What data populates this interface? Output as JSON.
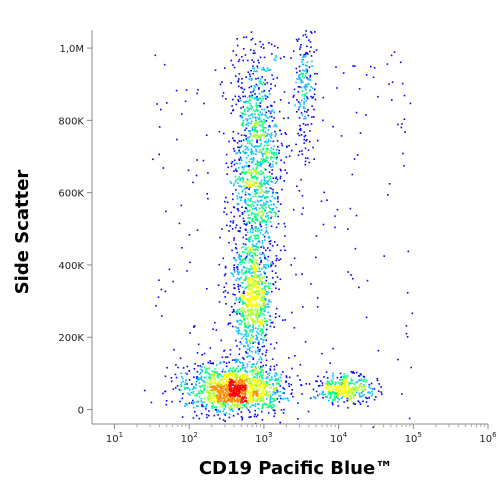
{
  "chart_data": {
    "type": "scatter",
    "subtype": "flow-cytometry-density-dot-plot",
    "title": "",
    "xlabel": "CD19 Pacific Blue™",
    "ylabel": "Side Scatter",
    "x_scale": "log",
    "xlim": [
      5,
      1000000
    ],
    "ylim": [
      -40000,
      1050000
    ],
    "x_ticks": [
      {
        "value": 10,
        "base": "10",
        "exp": "1"
      },
      {
        "value": 100,
        "base": "10",
        "exp": "2"
      },
      {
        "value": 1000,
        "base": "10",
        "exp": "3"
      },
      {
        "value": 10000,
        "base": "10",
        "exp": "4"
      },
      {
        "value": 100000,
        "base": "10",
        "exp": "5"
      },
      {
        "value": 1000000,
        "base": "10",
        "exp": "6"
      }
    ],
    "y_ticks": [
      {
        "value": 0,
        "label": "0"
      },
      {
        "value": 200000,
        "label": "200K"
      },
      {
        "value": 400000,
        "label": "400K"
      },
      {
        "value": 600000,
        "label": "600K"
      },
      {
        "value": 800000,
        "label": "800K"
      },
      {
        "value": 1000000,
        "label": "1,0M"
      }
    ],
    "grid": false,
    "legend": "none",
    "color_scale": [
      "#00008b",
      "#0000ff",
      "#00bfff",
      "#00ff7f",
      "#adff2f",
      "#ffff00",
      "#ff8c00",
      "#ff0000"
    ],
    "populations": [
      {
        "x": 400,
        "y": 60000,
        "count": 1400
      },
      {
        "x": 750,
        "y": 650000,
        "count": 1300
      },
      {
        "x": 700,
        "y": 300000,
        "count": 700
      },
      {
        "x": 12000,
        "y": 60000,
        "count": 350
      },
      {
        "x": 3500,
        "y": 900000,
        "count": 200
      }
    ]
  }
}
